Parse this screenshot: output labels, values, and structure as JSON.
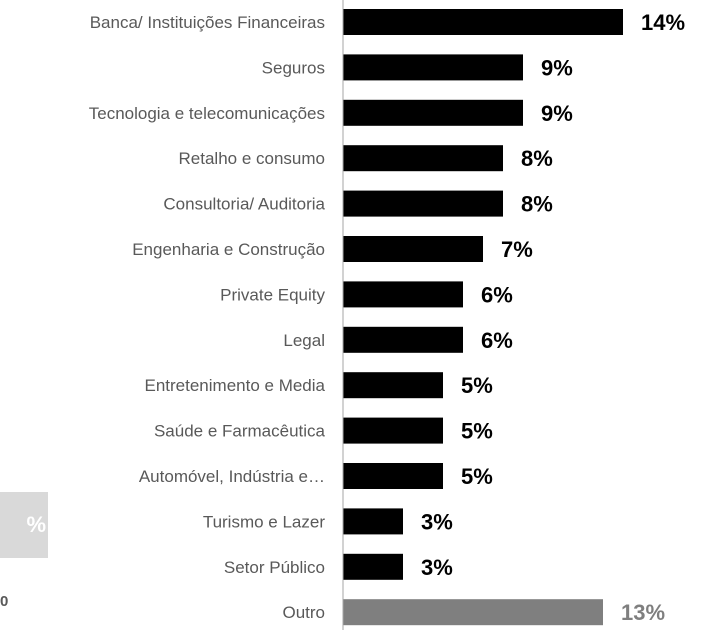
{
  "left_panel": {
    "text": "%",
    "note": "0"
  },
  "chart_data": {
    "type": "bar",
    "orientation": "horizontal",
    "title": "",
    "xlabel": "",
    "ylabel": "",
    "categories": [
      "Banca/ Instituições Financeiras",
      "Seguros",
      "Tecnologia e telecomunicações",
      "Retalho e consumo",
      "Consultoria/ Auditoria",
      "Engenharia e Construção",
      "Private Equity",
      "Legal",
      "Entretenimento e Media",
      "Saúde e Farmacêutica",
      "Automóvel, Indústria e…",
      "Turismo e Lazer",
      "Setor Público",
      "Outro"
    ],
    "values": [
      14,
      9,
      9,
      8,
      8,
      7,
      6,
      6,
      5,
      5,
      5,
      3,
      3,
      13
    ],
    "value_labels": [
      "14%",
      "9%",
      "9%",
      "8%",
      "8%",
      "7%",
      "6%",
      "6%",
      "5%",
      "5%",
      "5%",
      "3%",
      "3%",
      "13%"
    ],
    "unit": "%",
    "colors": {
      "bar": "#000000",
      "highlight_bar": "#7f7f7f",
      "highlight_label": "#7f7f7f",
      "label": "#000000",
      "category_text": "#595959",
      "axis": "#a6a6a6"
    },
    "highlight_index": 13,
    "grid": false,
    "legend": "none"
  }
}
